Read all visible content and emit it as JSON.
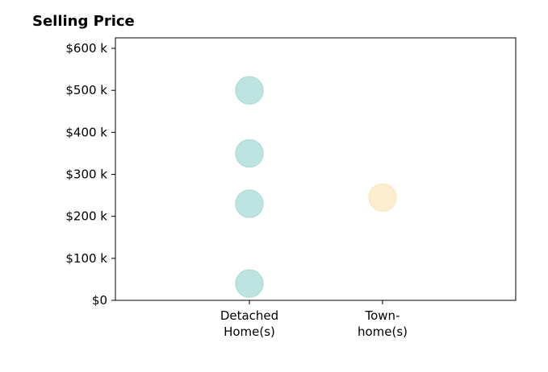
{
  "chart_data": {
    "type": "scatter",
    "title": "Selling Price",
    "xlabel": "",
    "ylabel": "",
    "categories": [
      "Detached\nHome(s)",
      "Town-\nhome(s)"
    ],
    "ylim": [
      0,
      625000
    ],
    "yticks": [
      0,
      100000,
      200000,
      300000,
      400000,
      500000,
      600000
    ],
    "ytick_labels": [
      "$0",
      "$100 k",
      "$200 k",
      "$300 k",
      "$400 k",
      "$500 k",
      "$600 k"
    ],
    "grid": false,
    "series": [
      {
        "category": "Detached\nHome(s)",
        "color": "#b2dfdb",
        "values": [
          500000,
          350000,
          230000,
          40000
        ]
      },
      {
        "category": "Town-\nhome(s)",
        "color": "#fbe9c8",
        "values": [
          245000
        ]
      }
    ]
  }
}
